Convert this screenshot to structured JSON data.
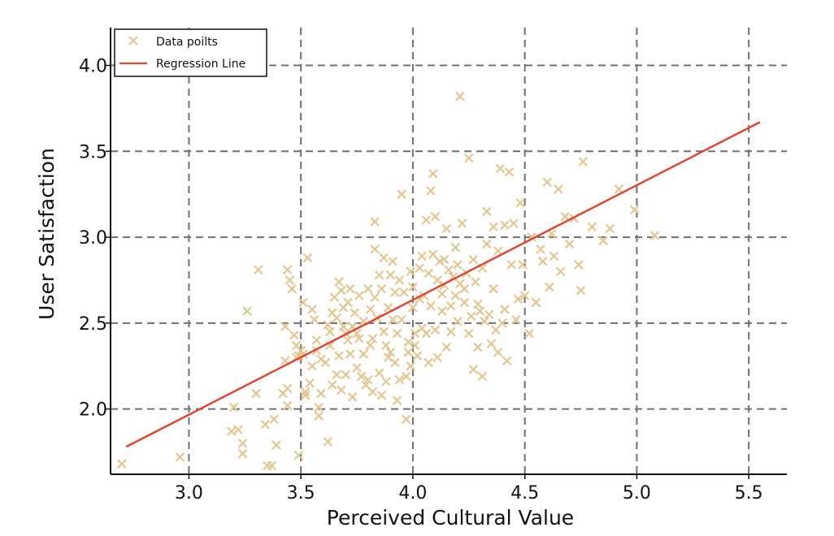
{
  "chart_data": {
    "type": "scatter",
    "xlabel": "Perceived Cultural Value",
    "ylabel": "User Satisfaction",
    "xlim": [
      2.65,
      5.67
    ],
    "ylim": [
      1.62,
      4.22
    ],
    "x_ticks": [
      3.0,
      3.5,
      4.0,
      4.5,
      5.0,
      5.5
    ],
    "x_tick_labels": [
      "3.0",
      "3.5",
      "4.0",
      "4.5",
      "5.0",
      "5.5"
    ],
    "y_ticks": [
      2.0,
      2.5,
      3.0,
      3.5,
      4.0
    ],
    "y_tick_labels": [
      "2.0",
      "2.5",
      "3.0",
      "3.5",
      "4.0"
    ],
    "grid": true,
    "legend_position": "top-left",
    "series": [
      {
        "name": "Data poilts",
        "type": "scatter",
        "marker": "x",
        "color": "#e2c792",
        "points": [
          [
            2.7,
            1.68
          ],
          [
            2.96,
            1.72
          ],
          [
            3.2,
            2.01
          ],
          [
            3.19,
            1.87
          ],
          [
            3.22,
            1.88
          ],
          [
            3.24,
            1.8
          ],
          [
            3.24,
            1.74
          ],
          [
            3.26,
            2.57
          ],
          [
            3.3,
            2.09
          ],
          [
            3.31,
            2.81
          ],
          [
            3.34,
            1.91
          ],
          [
            3.35,
            1.67
          ],
          [
            3.37,
            1.67
          ],
          [
            3.38,
            1.94
          ],
          [
            3.39,
            1.79
          ],
          [
            3.42,
            2.09
          ],
          [
            3.43,
            2.48
          ],
          [
            3.43,
            2.28
          ],
          [
            3.44,
            2.81
          ],
          [
            3.44,
            2.02
          ],
          [
            3.44,
            2.12
          ],
          [
            3.45,
            2.75
          ],
          [
            3.46,
            2.7
          ],
          [
            3.47,
            2.43
          ],
          [
            3.48,
            2.37
          ],
          [
            3.48,
            2.3
          ],
          [
            3.49,
            2.31
          ],
          [
            3.49,
            1.73
          ],
          [
            3.5,
            2.34
          ],
          [
            3.51,
            2.62
          ],
          [
            3.51,
            2.32
          ],
          [
            3.52,
            2.1
          ],
          [
            3.52,
            2.08
          ],
          [
            3.53,
            2.88
          ],
          [
            3.54,
            2.15
          ],
          [
            3.55,
            2.58
          ],
          [
            3.55,
            2.25
          ],
          [
            3.56,
            2.52
          ],
          [
            3.57,
            2.4
          ],
          [
            3.57,
            2.34
          ],
          [
            3.58,
            2.01
          ],
          [
            3.58,
            1.96
          ],
          [
            3.59,
            2.09
          ],
          [
            3.59,
            2.29
          ],
          [
            3.61,
            2.27
          ],
          [
            3.62,
            2.49
          ],
          [
            3.62,
            1.81
          ],
          [
            3.63,
            2.45
          ],
          [
            3.63,
            2.37
          ],
          [
            3.64,
            2.56
          ],
          [
            3.64,
            2.14
          ],
          [
            3.65,
            2.65
          ],
          [
            3.66,
            2.2
          ],
          [
            3.66,
            2.53
          ],
          [
            3.67,
            2.31
          ],
          [
            3.67,
            2.74
          ],
          [
            3.68,
            2.69
          ],
          [
            3.68,
            2.11
          ],
          [
            3.69,
            2.59
          ],
          [
            3.69,
            2.48
          ],
          [
            3.7,
            2.44
          ],
          [
            3.7,
            2.2
          ],
          [
            3.71,
            2.62
          ],
          [
            3.71,
            2.4
          ],
          [
            3.72,
            2.7
          ],
          [
            3.72,
            2.32
          ],
          [
            3.73,
            2.07
          ],
          [
            3.73,
            2.48
          ],
          [
            3.74,
            2.56
          ],
          [
            3.75,
            2.44
          ],
          [
            3.75,
            2.24
          ],
          [
            3.76,
            2.66
          ],
          [
            3.76,
            2.41
          ],
          [
            3.77,
            2.19
          ],
          [
            3.78,
            2.32
          ],
          [
            3.78,
            2.51
          ],
          [
            3.79,
            2.14
          ],
          [
            3.8,
            2.7
          ],
          [
            3.8,
            2.17
          ],
          [
            3.81,
            2.37
          ],
          [
            3.81,
            2.58
          ],
          [
            3.82,
            2.41
          ],
          [
            3.82,
            2.1
          ],
          [
            3.83,
            2.65
          ],
          [
            3.83,
            3.09
          ],
          [
            3.83,
            2.93
          ],
          [
            3.84,
            2.53
          ],
          [
            3.85,
            2.78
          ],
          [
            3.85,
            2.21
          ],
          [
            3.86,
            2.7
          ],
          [
            3.86,
            2.08
          ],
          [
            3.87,
            2.88
          ],
          [
            3.87,
            2.45
          ],
          [
            3.88,
            2.16
          ],
          [
            3.88,
            2.37
          ],
          [
            3.89,
            2.59
          ],
          [
            3.89,
            2.3
          ],
          [
            3.9,
            2.78
          ],
          [
            3.9,
            2.33
          ],
          [
            3.91,
            2.86
          ],
          [
            3.91,
            2.52
          ],
          [
            3.92,
            2.27
          ],
          [
            3.92,
            2.68
          ],
          [
            3.93,
            2.05
          ],
          [
            3.93,
            2.44
          ],
          [
            3.94,
            2.17
          ],
          [
            3.94,
            2.75
          ],
          [
            3.95,
            3.25
          ],
          [
            3.95,
            2.52
          ],
          [
            3.96,
            2.68
          ],
          [
            3.97,
            2.19
          ],
          [
            3.97,
            1.94
          ],
          [
            3.98,
            2.39
          ],
          [
            3.98,
            2.33
          ],
          [
            3.99,
            2.8
          ],
          [
            3.99,
            2.25
          ],
          [
            4.0,
            2.59
          ],
          [
            4.0,
            2.71
          ],
          [
            4.01,
            2.44
          ],
          [
            4.01,
            2.37
          ],
          [
            4.02,
            2.31
          ],
          [
            4.03,
            2.82
          ],
          [
            4.03,
            2.64
          ],
          [
            4.04,
            2.89
          ],
          [
            4.04,
            2.47
          ],
          [
            4.05,
            2.66
          ],
          [
            4.06,
            3.1
          ],
          [
            4.06,
            2.44
          ],
          [
            4.07,
            2.79
          ],
          [
            4.07,
            2.27
          ],
          [
            4.08,
            3.27
          ],
          [
            4.08,
            2.6
          ],
          [
            4.09,
            2.9
          ],
          [
            4.09,
            3.37
          ],
          [
            4.1,
            2.46
          ],
          [
            4.1,
            3.12
          ],
          [
            4.11,
            2.75
          ],
          [
            4.11,
            2.3
          ],
          [
            4.12,
            2.86
          ],
          [
            4.13,
            2.57
          ],
          [
            4.13,
            2.67
          ],
          [
            4.14,
            2.72
          ],
          [
            4.14,
            2.87
          ],
          [
            4.15,
            2.36
          ],
          [
            4.15,
            3.05
          ],
          [
            4.16,
            2.81
          ],
          [
            4.17,
            2.6
          ],
          [
            4.17,
            2.45
          ],
          [
            4.18,
            2.77
          ],
          [
            4.19,
            2.94
          ],
          [
            4.19,
            2.66
          ],
          [
            4.2,
            2.84
          ],
          [
            4.2,
            2.51
          ],
          [
            4.21,
            3.82
          ],
          [
            4.21,
            2.73
          ],
          [
            4.22,
            3.08
          ],
          [
            4.23,
            2.62
          ],
          [
            4.23,
            2.7
          ],
          [
            4.24,
            2.79
          ],
          [
            4.25,
            3.46
          ],
          [
            4.25,
            2.44
          ],
          [
            4.26,
            2.54
          ],
          [
            4.27,
            2.87
          ],
          [
            4.27,
            2.23
          ],
          [
            4.28,
            2.74
          ],
          [
            4.29,
            2.61
          ],
          [
            4.29,
            2.36
          ],
          [
            4.3,
            2.57
          ],
          [
            4.31,
            2.19
          ],
          [
            4.31,
            2.82
          ],
          [
            4.32,
            2.51
          ],
          [
            4.33,
            3.15
          ],
          [
            4.33,
            2.96
          ],
          [
            4.34,
            2.55
          ],
          [
            4.35,
            2.38
          ],
          [
            4.36,
            2.7
          ],
          [
            4.36,
            3.06
          ],
          [
            4.37,
            2.46
          ],
          [
            4.38,
            2.92
          ],
          [
            4.38,
            2.33
          ],
          [
            4.39,
            3.4
          ],
          [
            4.4,
            2.5
          ],
          [
            4.41,
            2.58
          ],
          [
            4.41,
            3.07
          ],
          [
            4.42,
            2.28
          ],
          [
            4.43,
            3.38
          ],
          [
            4.44,
            2.84
          ],
          [
            4.45,
            3.08
          ],
          [
            4.46,
            2.52
          ],
          [
            4.47,
            2.64
          ],
          [
            4.48,
            3.2
          ],
          [
            4.49,
            2.84
          ],
          [
            4.5,
            2.66
          ],
          [
            4.52,
            2.44
          ],
          [
            4.53,
            3.0
          ],
          [
            4.55,
            2.62
          ],
          [
            4.57,
            2.93
          ],
          [
            4.58,
            2.86
          ],
          [
            4.6,
            3.32
          ],
          [
            4.61,
            2.71
          ],
          [
            4.62,
            3.02
          ],
          [
            4.63,
            2.89
          ],
          [
            4.65,
            3.28
          ],
          [
            4.66,
            2.8
          ],
          [
            4.68,
            3.12
          ],
          [
            4.7,
            2.96
          ],
          [
            4.72,
            3.11
          ],
          [
            4.74,
            2.84
          ],
          [
            4.75,
            2.69
          ],
          [
            4.76,
            3.44
          ],
          [
            4.8,
            3.06
          ],
          [
            4.85,
            2.98
          ],
          [
            4.88,
            3.05
          ],
          [
            4.92,
            3.28
          ],
          [
            4.99,
            3.16
          ],
          [
            5.08,
            3.01
          ]
        ]
      },
      {
        "name": "Regression Line",
        "type": "line",
        "color": "#e0452f",
        "points": [
          [
            2.72,
            1.78
          ],
          [
            5.55,
            3.67
          ]
        ]
      }
    ]
  }
}
